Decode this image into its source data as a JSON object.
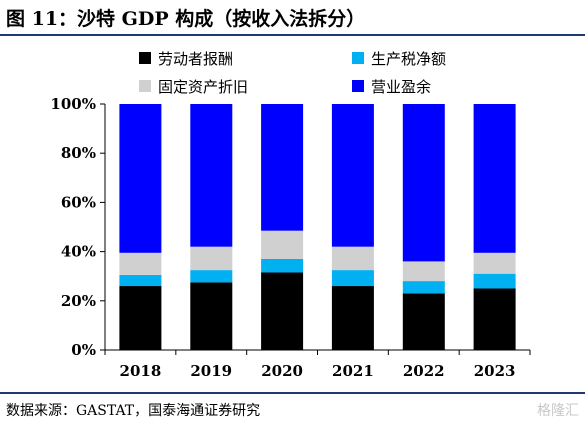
{
  "figure_title": "图 11：沙特 GDP 构成（按收入法拆分）",
  "source_note": "数据来源：GASTAT，国泰海通证券研究",
  "watermark": "格隆汇",
  "chart_data": {
    "type": "bar",
    "stacked": true,
    "categories": [
      "2018",
      "2019",
      "2020",
      "2021",
      "2022",
      "2023"
    ],
    "series": [
      {
        "name": "劳动者报酬",
        "color": "#000000",
        "values": [
          26,
          27.5,
          31.5,
          26,
          23,
          25
        ]
      },
      {
        "name": "生产税净额",
        "color": "#00b0f0",
        "values": [
          4.5,
          5,
          5.5,
          6.5,
          5,
          6
        ]
      },
      {
        "name": "固定资产折旧",
        "color": "#d0d0d0",
        "values": [
          9,
          9.5,
          11.5,
          9.5,
          8,
          8.5
        ]
      },
      {
        "name": "营业盈余",
        "color": "#0000ff",
        "values": [
          60.5,
          58,
          51.5,
          58,
          64,
          60.5
        ]
      }
    ],
    "ylim": [
      0,
      100
    ],
    "yticks": [
      "0%",
      "20%",
      "40%",
      "60%",
      "80%",
      "100%"
    ],
    "grid": false,
    "legend_position": "top"
  }
}
